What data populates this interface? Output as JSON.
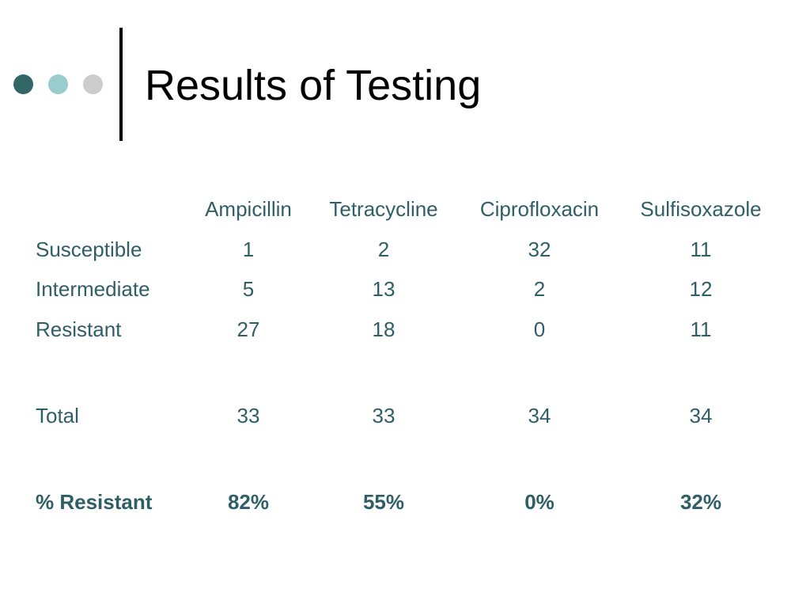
{
  "slide": {
    "title": "Results of Testing",
    "dot_colors": [
      "#336666",
      "#99cccc",
      "#cccccc"
    ],
    "text_color": "#2f5f66",
    "title_color": "#000000"
  },
  "table": {
    "columns": [
      "Ampicillin",
      "Tetracycline",
      "Ciprofloxacin",
      "Sulfisoxazole"
    ],
    "rows": [
      {
        "label": "Susceptible",
        "values": [
          "1",
          "2",
          "32",
          "11"
        ]
      },
      {
        "label": "Intermediate",
        "values": [
          "5",
          "13",
          "2",
          "12"
        ]
      },
      {
        "label": "Resistant",
        "values": [
          "27",
          "18",
          "0",
          "11"
        ]
      },
      {
        "label": "Total",
        "values": [
          "33",
          "33",
          "34",
          "34"
        ]
      },
      {
        "label": "% Resistant",
        "values": [
          "82%",
          "55%",
          "0%",
          "32%"
        ],
        "bold": true
      }
    ]
  }
}
